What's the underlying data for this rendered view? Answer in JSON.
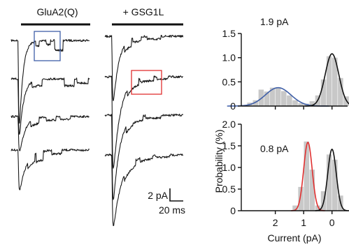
{
  "figure": {
    "label_left": "GluA2(Q)",
    "label_right": "+ GSG1L",
    "scalebar_y": "2 pA",
    "scalebar_x": "20 ms",
    "colors": {
      "trace": "#1a1a1a",
      "highlight_left": "#3f5fa8",
      "highlight_right": "#e03030",
      "fit_blue": "#3f5fa8",
      "fit_red": "#e03030",
      "fit_black": "#111111",
      "histogram_fill": "#c8c8c8"
    }
  },
  "chart_data": [
    {
      "type": "bar",
      "panel": "top",
      "annotation": "1.9 pA",
      "ylabel": "Probability (%)",
      "xlabel": "",
      "xlim": [
        3.2,
        -0.55
      ],
      "ylim": [
        0,
        1.5
      ],
      "yticks": [
        0,
        0.5,
        1.0,
        1.5
      ],
      "ytick_labels": [
        "0",
        "0.5",
        "1.0",
        "1.5"
      ],
      "bins": [
        {
          "x": 3.1,
          "y": 0.02
        },
        {
          "x": 2.9,
          "y": 0.07
        },
        {
          "x": 2.7,
          "y": 0.12
        },
        {
          "x": 2.5,
          "y": 0.34
        },
        {
          "x": 2.3,
          "y": 0.3
        },
        {
          "x": 2.1,
          "y": 0.38
        },
        {
          "x": 1.9,
          "y": 0.37
        },
        {
          "x": 1.7,
          "y": 0.31
        },
        {
          "x": 1.5,
          "y": 0.22
        },
        {
          "x": 1.3,
          "y": 0.12
        },
        {
          "x": 1.1,
          "y": 0.06
        },
        {
          "x": 0.9,
          "y": 0.05
        },
        {
          "x": 0.7,
          "y": 0.1
        },
        {
          "x": 0.5,
          "y": 0.22
        },
        {
          "x": 0.3,
          "y": 0.55
        },
        {
          "x": 0.1,
          "y": 1.03
        },
        {
          "x": -0.1,
          "y": 1.0
        },
        {
          "x": -0.3,
          "y": 0.58
        },
        {
          "x": -0.5,
          "y": 0.2
        }
      ],
      "fits": [
        {
          "color": "#3f5fa8",
          "mean": 1.9,
          "sd": 0.45,
          "amp": 0.38
        },
        {
          "color": "#111111",
          "mean": 0.0,
          "sd": 0.24,
          "amp": 1.08
        }
      ]
    },
    {
      "type": "bar",
      "panel": "bottom",
      "annotation": "0.8 pA",
      "ylabel": "Probability (%)",
      "xlabel": "Current (pA)",
      "xlim": [
        3.2,
        -0.55
      ],
      "ylim": [
        0,
        2.0
      ],
      "yticks": [
        0,
        0.5,
        1.0,
        1.5,
        2.0
      ],
      "ytick_labels": [
        "0",
        "0.5",
        "1.0",
        "1.5",
        "2.0"
      ],
      "xticks": [
        2,
        1,
        0
      ],
      "xtick_labels": [
        "2",
        "1",
        "0"
      ],
      "bins": [
        {
          "x": 1.3,
          "y": 0.12
        },
        {
          "x": 1.1,
          "y": 0.55
        },
        {
          "x": 0.9,
          "y": 1.6
        },
        {
          "x": 0.7,
          "y": 0.95
        },
        {
          "x": 0.5,
          "y": 0.12
        },
        {
          "x": 0.3,
          "y": 0.45
        },
        {
          "x": 0.1,
          "y": 1.3
        },
        {
          "x": -0.1,
          "y": 1.18
        },
        {
          "x": -0.3,
          "y": 0.35
        }
      ],
      "fits": [
        {
          "color": "#e03030",
          "mean": 0.85,
          "sd": 0.15,
          "amp": 1.58
        },
        {
          "color": "#111111",
          "mean": 0.0,
          "sd": 0.15,
          "amp": 1.42
        }
      ]
    }
  ]
}
